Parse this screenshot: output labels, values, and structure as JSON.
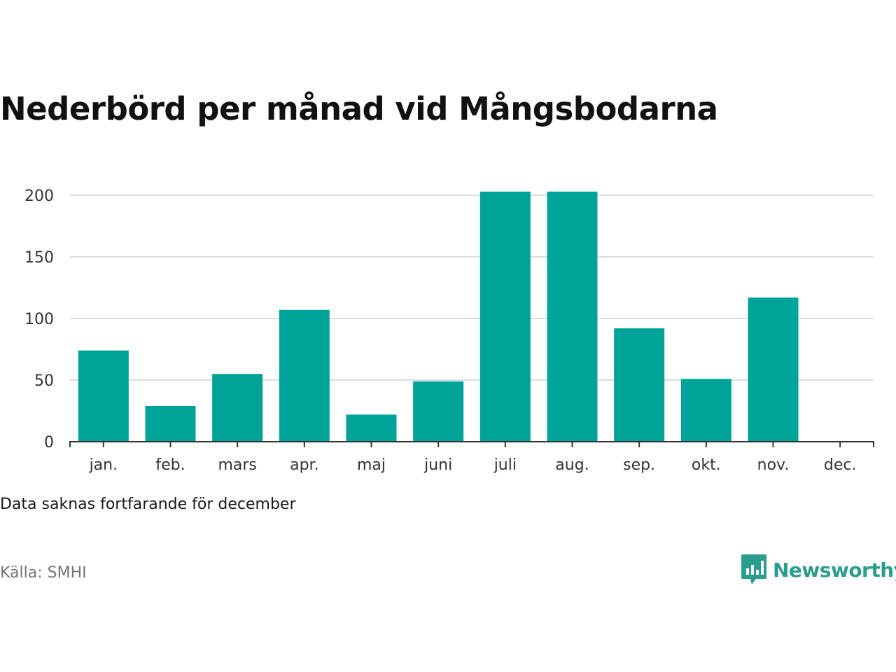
{
  "title": "Nederbörd per månad vid Mångsbodarna",
  "note": "Data saknas fortfarande för december",
  "source": "Källa: SMHI",
  "brand": {
    "name": "Newsworthy",
    "icon": "newsworthy-logo-icon",
    "color": "#2a9d8f"
  },
  "chart_data": {
    "type": "bar",
    "categories": [
      "jan.",
      "feb.",
      "mars",
      "apr.",
      "maj",
      "juni",
      "juli",
      "aug.",
      "sep.",
      "okt.",
      "nov.",
      "dec."
    ],
    "values": [
      74,
      29,
      55,
      107,
      22,
      49,
      203,
      203,
      92,
      51,
      117,
      null
    ],
    "title": "",
    "xlabel": "",
    "ylabel": "",
    "ylim": [
      0,
      200
    ],
    "yticks": [
      0,
      50,
      100,
      150,
      200
    ],
    "grid": true,
    "bar_color": "#00a398"
  }
}
